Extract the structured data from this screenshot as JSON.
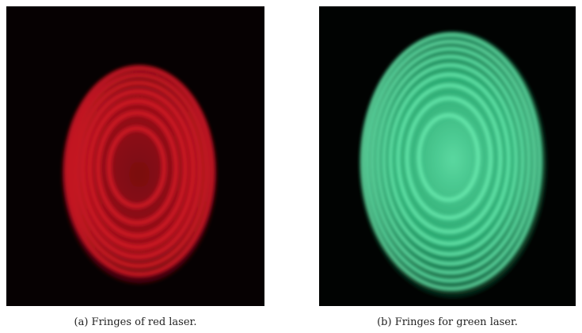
{
  "figures": [
    {
      "caption": "(a) Fringes of red laser."
    },
    {
      "caption": "(b) Fringes for green laser."
    }
  ]
}
